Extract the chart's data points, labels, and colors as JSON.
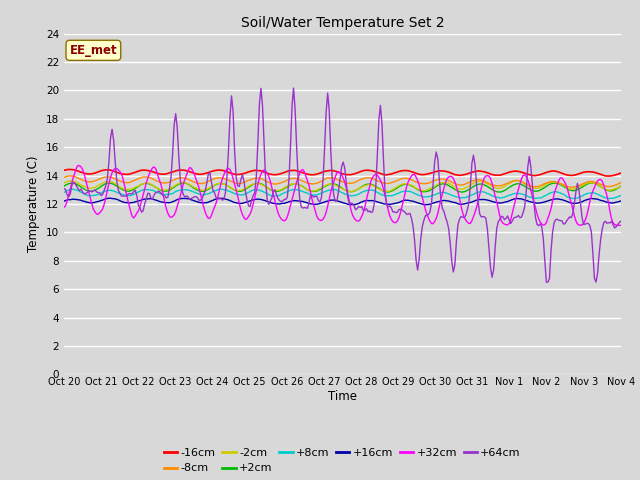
{
  "title": "Soil/Water Temperature Set 2",
  "xlabel": "Time",
  "ylabel": "Temperature (C)",
  "ylim": [
    0,
    24
  ],
  "yticks": [
    0,
    2,
    4,
    6,
    8,
    10,
    12,
    14,
    16,
    18,
    20,
    22,
    24
  ],
  "x_labels": [
    "Oct 20",
    "Oct 21",
    "Oct 22",
    "Oct 23",
    "Oct 24",
    "Oct 25",
    "Oct 26",
    "Oct 27",
    "Oct 28",
    "Oct 29",
    "Oct 30",
    "Oct 31",
    "Nov 1",
    "Nov 2",
    "Nov 3",
    "Nov 4"
  ],
  "annotation_text": "EE_met",
  "annotation_color": "#8B0000",
  "annotation_bg": "#FFFFCC",
  "bg_color": "#D8D8D8",
  "series_colors": {
    "-16cm": "#FF0000",
    "-8cm": "#FF8C00",
    "-2cm": "#CCCC00",
    "+2cm": "#00BB00",
    "+8cm": "#00CCCC",
    "+16cm": "#0000AA",
    "+32cm": "#FF00FF",
    "+64cm": "#9933CC"
  },
  "n_days": 15
}
